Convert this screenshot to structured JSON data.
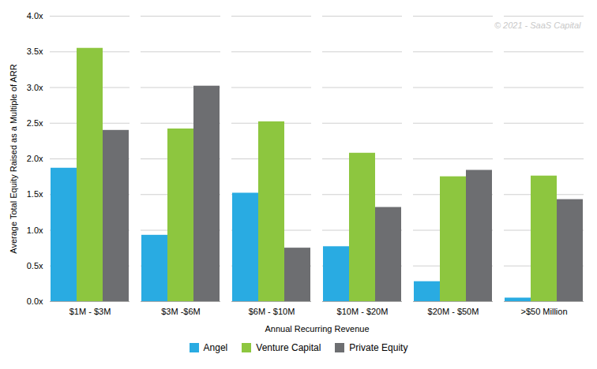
{
  "chart_data": {
    "type": "bar",
    "categories": [
      "$1M - $3M",
      "$3M -$6M",
      "$6M - $10M",
      "$10M - $20M",
      "$20M - $50M",
      ">$50 Million"
    ],
    "series": [
      {
        "name": "Angel",
        "color": "#29ABE2",
        "values": [
          1.87,
          0.93,
          1.52,
          0.77,
          0.28,
          0.05
        ]
      },
      {
        "name": "Venture Capital",
        "color": "#8DC63F",
        "values": [
          3.55,
          2.42,
          2.52,
          2.08,
          1.75,
          1.76
        ]
      },
      {
        "name": "Private Equity",
        "color": "#6D6E71",
        "values": [
          2.4,
          3.02,
          0.75,
          1.32,
          1.84,
          1.43
        ]
      }
    ],
    "xlabel": "Annual Recurring Revenue",
    "ylabel": "Average Total Equity Raised as a Multiple of ARR",
    "ylim": [
      0,
      4.0
    ],
    "yticks": [
      {
        "value": 0.0,
        "label": "0.0x"
      },
      {
        "value": 0.5,
        "label": "0.5x"
      },
      {
        "value": 1.0,
        "label": "1.0x"
      },
      {
        "value": 1.5,
        "label": "1.5x"
      },
      {
        "value": 2.0,
        "label": "2.0x"
      },
      {
        "value": 2.5,
        "label": "2.5x"
      },
      {
        "value": 3.0,
        "label": "3.0x"
      },
      {
        "value": 3.5,
        "label": "3.5x"
      },
      {
        "value": 4.0,
        "label": "4.0x"
      }
    ],
    "grid": true,
    "legend": "bottom",
    "annotations": [
      {
        "text": "© 2021 - SaaS Capital"
      }
    ]
  }
}
